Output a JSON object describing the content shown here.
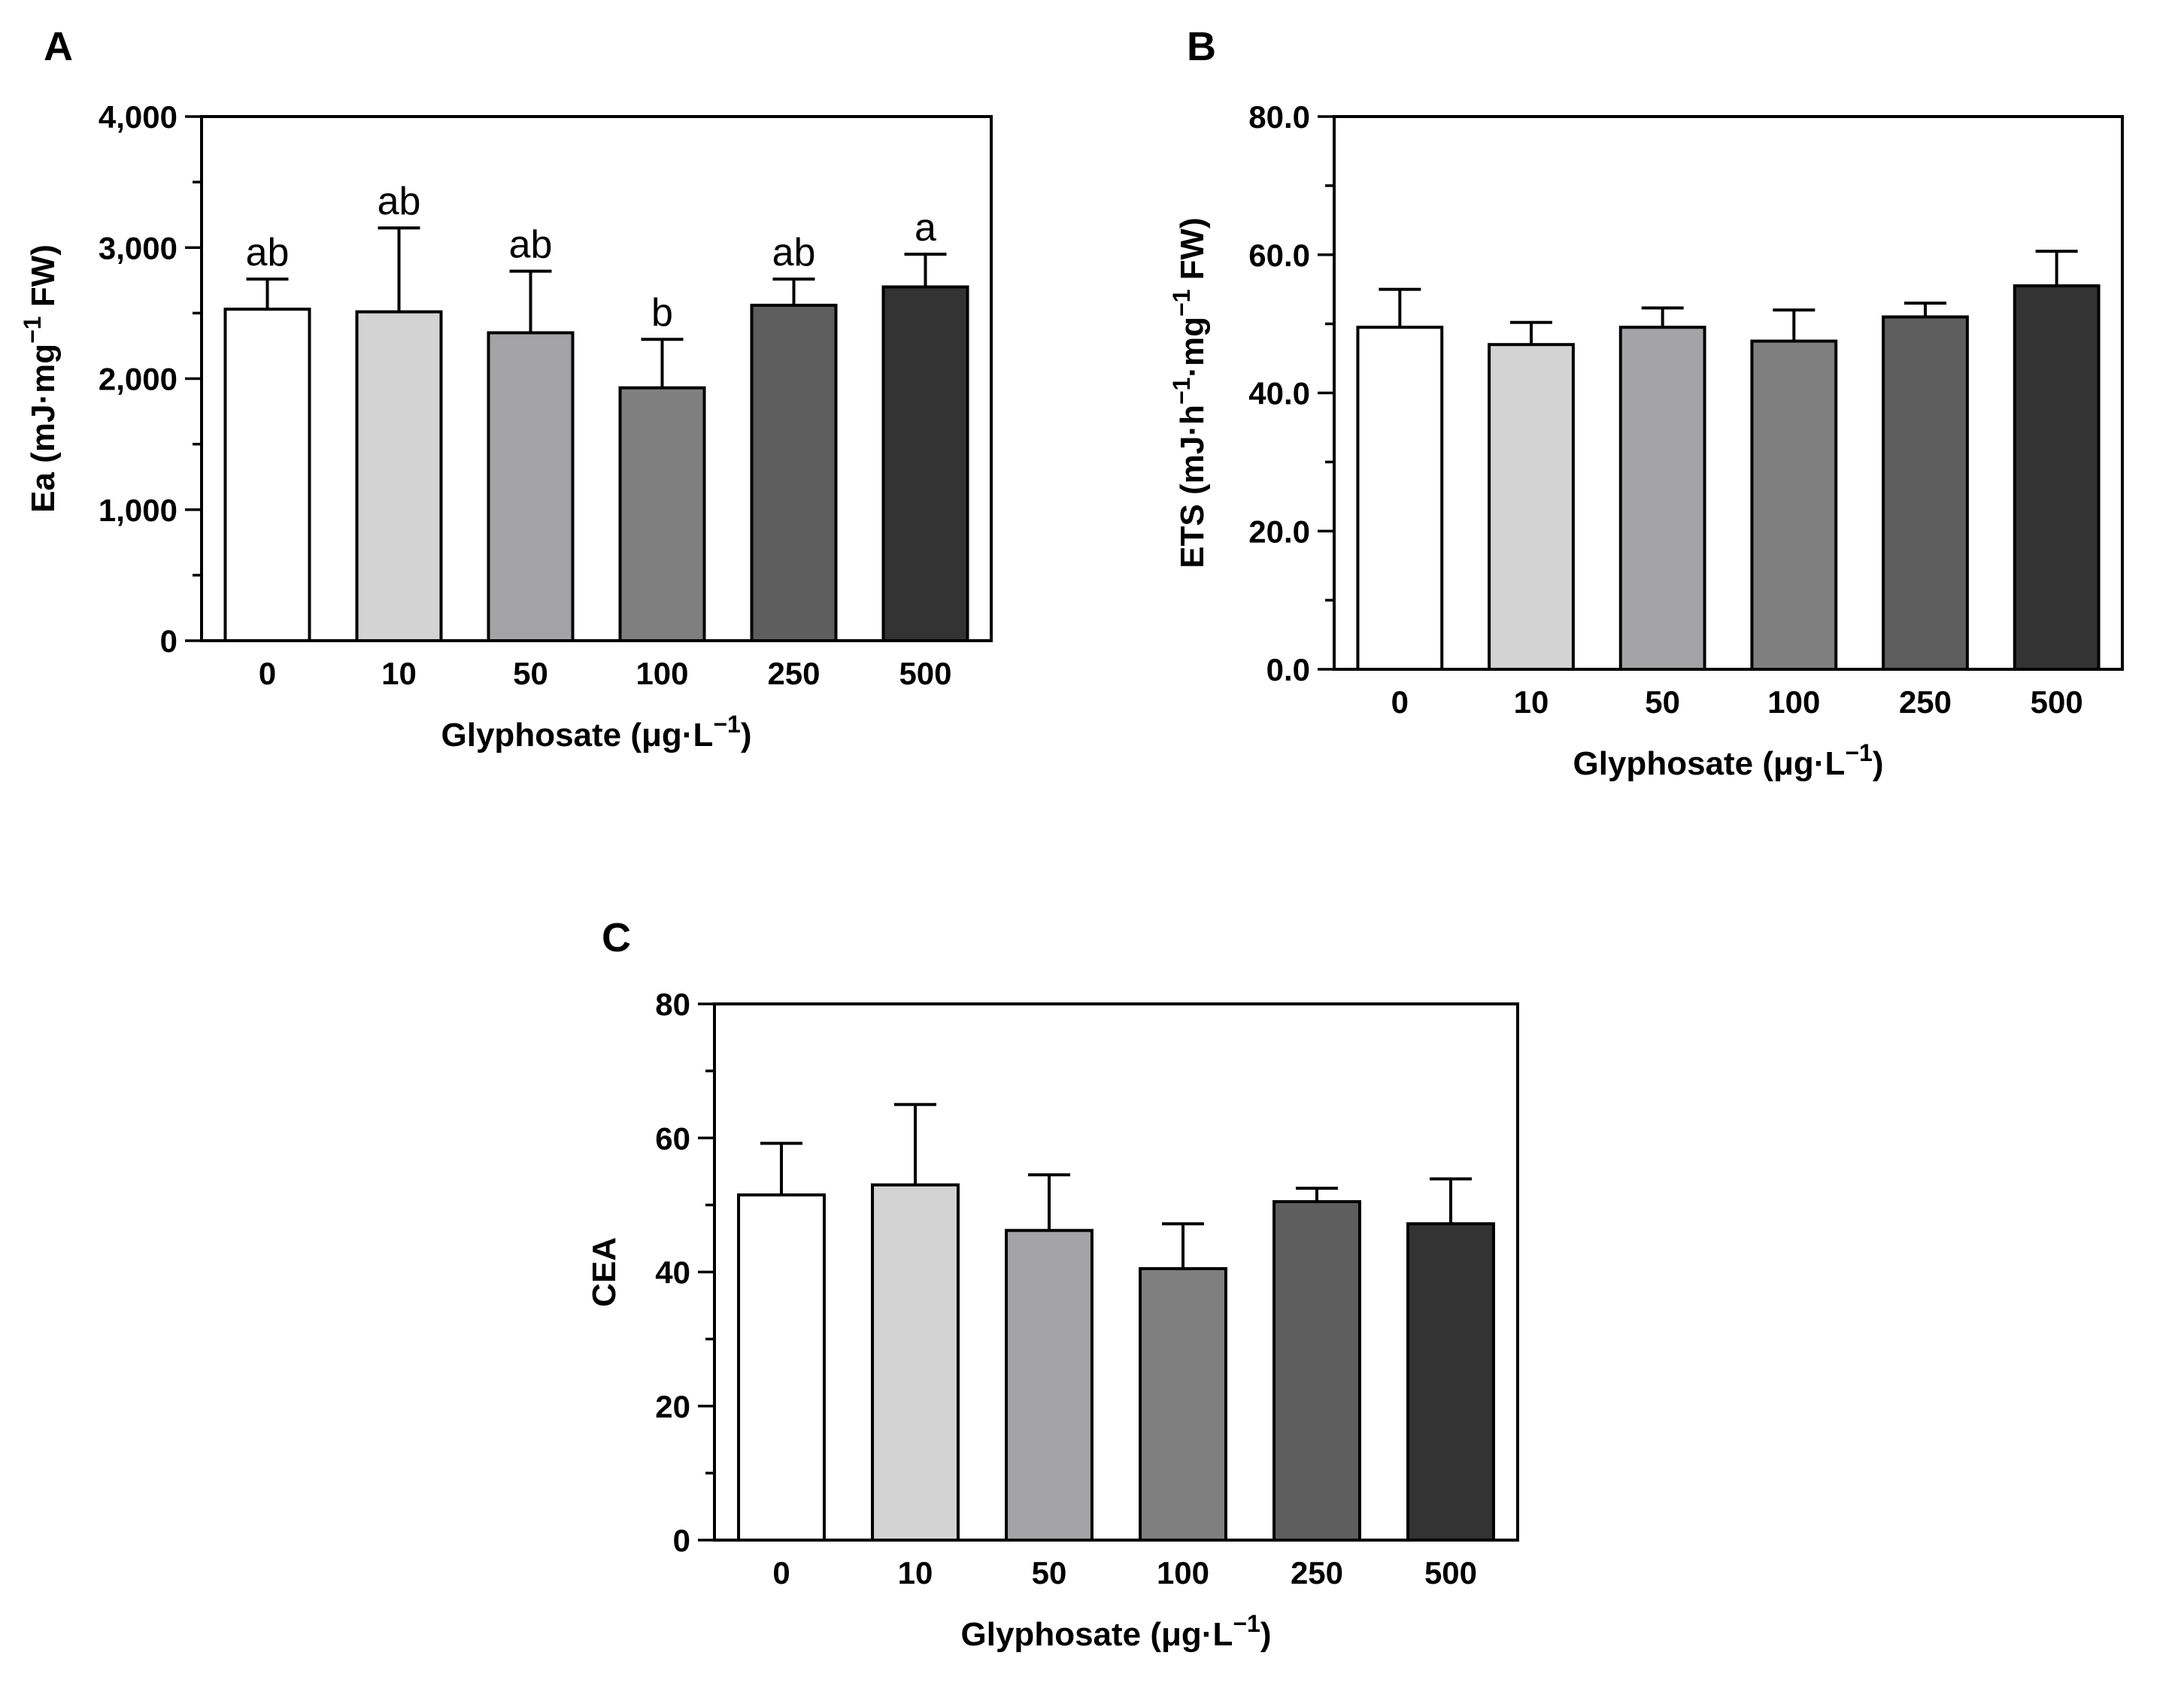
{
  "chart_data": [
    {
      "panel": "A",
      "type": "bar",
      "categories": [
        "0",
        "10",
        "50",
        "100",
        "250",
        "500"
      ],
      "values": [
        2530,
        2510,
        2350,
        1930,
        2560,
        2700
      ],
      "errors": [
        230,
        640,
        470,
        370,
        200,
        250
      ],
      "significance": [
        "ab",
        "ab",
        "ab",
        "b",
        "ab",
        "a"
      ],
      "colors": [
        "#ffffff",
        "#d3d3d3",
        "#a4a4a6",
        "#7f7f7f",
        "#5e5e5e",
        "#333333"
      ],
      "xlabel": "Glyphosate (μg·L",
      "xlabel_sup": "−1",
      "xlabel_end": ")",
      "ylabel": "Ea (mJ·mg",
      "ylabel_sup": "−1",
      "ylabel_end": " FW)",
      "ylim": [
        0,
        4000
      ],
      "yticks": [
        0,
        1000,
        2000,
        3000,
        4000
      ],
      "ytick_labels": [
        "0",
        "1,000",
        "2,000",
        "3,000",
        "4,000"
      ],
      "minor_step": 500,
      "grid": false
    },
    {
      "panel": "B",
      "type": "bar",
      "categories": [
        "0",
        "10",
        "50",
        "100",
        "250",
        "500"
      ],
      "values": [
        49.5,
        47.0,
        49.5,
        47.5,
        51.0,
        55.5
      ],
      "errors": [
        5.5,
        3.2,
        2.8,
        4.5,
        2.0,
        5.0
      ],
      "significance": [],
      "colors": [
        "#ffffff",
        "#d3d3d3",
        "#a4a4a6",
        "#7f7f7f",
        "#5e5e5e",
        "#333333"
      ],
      "xlabel": "Glyphosate (μg·L",
      "xlabel_sup": "−1",
      "xlabel_end": ")",
      "ylabel": "ETS (mJ·h",
      "ylabel_sup": "−1",
      "ylabel_mid": "·mg",
      "ylabel_sup2": "−1",
      "ylabel_end": " FW)",
      "ylim": [
        0,
        80
      ],
      "yticks": [
        0,
        20,
        40,
        60,
        80
      ],
      "ytick_labels": [
        "0.0",
        "20.0",
        "40.0",
        "60.0",
        "80.0"
      ],
      "minor_step": 10,
      "grid": false
    },
    {
      "panel": "C",
      "type": "bar",
      "categories": [
        "0",
        "10",
        "50",
        "100",
        "250",
        "500"
      ],
      "values": [
        51.5,
        53.0,
        46.2,
        40.5,
        50.5,
        47.2
      ],
      "errors": [
        7.7,
        12.0,
        8.3,
        6.7,
        2.0,
        6.7
      ],
      "significance": [],
      "colors": [
        "#ffffff",
        "#d3d3d3",
        "#a4a4a6",
        "#7f7f7f",
        "#5e5e5e",
        "#333333"
      ],
      "xlabel": "Glyphosate (μg·L",
      "xlabel_sup": "−1",
      "xlabel_end": ")",
      "ylabel": "CEA",
      "ylim": [
        0,
        80
      ],
      "yticks": [
        0,
        20,
        40,
        60,
        80
      ],
      "ytick_labels": [
        "0",
        "20",
        "40",
        "60",
        "80"
      ],
      "minor_step": 10,
      "grid": false
    }
  ]
}
